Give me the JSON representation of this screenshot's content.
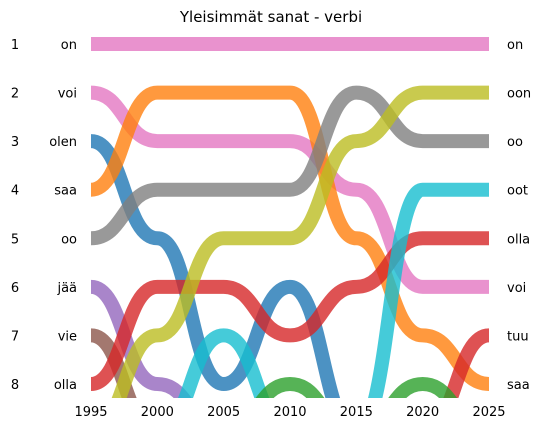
{
  "chart_data": {
    "type": "line",
    "title": "Yleisimmät sanat - verbi",
    "xlabel": "",
    "ylabel": "",
    "x_ticks": [
      "1995",
      "2000",
      "2005",
      "2010",
      "2015",
      "2020",
      "2025"
    ],
    "y_ticks": [
      "1",
      "2",
      "3",
      "4",
      "5",
      "6",
      "7",
      "8"
    ],
    "xlim": [
      1994,
      2026
    ],
    "ylim": [
      8,
      1
    ],
    "grid": false,
    "legend": "none",
    "series": [
      {
        "name": "on",
        "color": "#e377c2",
        "label_left": "on",
        "label_right": "on",
        "points": [
          [
            1995,
            1
          ],
          [
            2000,
            1
          ],
          [
            2005,
            1
          ],
          [
            2010,
            1
          ],
          [
            2015,
            1
          ],
          [
            2020,
            1
          ],
          [
            2025,
            1
          ]
        ]
      },
      {
        "name": "voi",
        "color": "#e377c2",
        "label_left": "voi",
        "label_right": "voi",
        "points": [
          [
            1995,
            2
          ],
          [
            2000,
            3
          ],
          [
            2005,
            3
          ],
          [
            2010,
            3
          ],
          [
            2015,
            4
          ],
          [
            2020,
            6
          ],
          [
            2025,
            6
          ]
        ]
      },
      {
        "name": "olen",
        "color": "#1f77b4",
        "label_left": "olen",
        "label_right": "",
        "points": [
          [
            1995,
            3
          ],
          [
            2000,
            5
          ],
          [
            2005,
            8
          ],
          [
            2010,
            6
          ],
          [
            2015,
            9
          ]
        ]
      },
      {
        "name": "saa",
        "color": "#ff7f0e",
        "label_left": "saa",
        "label_right": "saa",
        "points": [
          [
            1995,
            4
          ],
          [
            2000,
            2
          ],
          [
            2005,
            2
          ],
          [
            2010,
            2
          ],
          [
            2015,
            5
          ],
          [
            2020,
            7
          ],
          [
            2025,
            8
          ]
        ]
      },
      {
        "name": "oo",
        "color": "#7f7f7f",
        "label_left": "oo",
        "label_right": "oo",
        "points": [
          [
            1995,
            5
          ],
          [
            2000,
            4
          ],
          [
            2005,
            4
          ],
          [
            2010,
            4
          ],
          [
            2015,
            2
          ],
          [
            2020,
            3
          ],
          [
            2025,
            3
          ]
        ]
      },
      {
        "name": "jää",
        "color": "#9467bd",
        "label_left": "jää",
        "label_right": "",
        "points": [
          [
            1995,
            6
          ],
          [
            2000,
            8
          ],
          [
            2005,
            9
          ]
        ]
      },
      {
        "name": "vie",
        "color": "#8c564b",
        "label_left": "vie",
        "label_right": "",
        "points": [
          [
            1995,
            7
          ],
          [
            2000,
            9
          ]
        ]
      },
      {
        "name": "olla",
        "color": "#d62728",
        "label_left": "olla",
        "label_right": "olla",
        "points": [
          [
            1995,
            8
          ],
          [
            2000,
            6
          ],
          [
            2005,
            6
          ],
          [
            2010,
            7
          ],
          [
            2015,
            6
          ],
          [
            2020,
            5
          ],
          [
            2025,
            5
          ]
        ]
      },
      {
        "name": "oon",
        "color": "#bcbd22",
        "label_left": "",
        "label_right": "oon",
        "points": [
          [
            1995,
            9
          ],
          [
            2000,
            7
          ],
          [
            2005,
            5
          ],
          [
            2010,
            5
          ],
          [
            2015,
            3
          ],
          [
            2020,
            2
          ],
          [
            2025,
            2
          ]
        ]
      },
      {
        "name": "oot",
        "color": "#17becf",
        "label_left": "",
        "label_right": "oot",
        "points": [
          [
            2000,
            9
          ],
          [
            2005,
            7
          ],
          [
            2010,
            9
          ],
          [
            2015,
            9
          ],
          [
            2020,
            4
          ],
          [
            2025,
            4
          ]
        ]
      },
      {
        "name": "tuu",
        "color": "#d62728",
        "label_left": "",
        "label_right": "tuu",
        "points": [
          [
            2020,
            9
          ],
          [
            2025,
            7
          ]
        ]
      },
      {
        "name": "green-a",
        "color": "#2ca02c",
        "label_left": "",
        "label_right": "",
        "points": [
          [
            2005,
            9
          ],
          [
            2010,
            8
          ],
          [
            2015,
            9
          ]
        ]
      },
      {
        "name": "green-b",
        "color": "#2ca02c",
        "label_left": "",
        "label_right": "",
        "points": [
          [
            2015,
            9
          ],
          [
            2020,
            8
          ],
          [
            2025,
            9
          ]
        ]
      }
    ]
  }
}
